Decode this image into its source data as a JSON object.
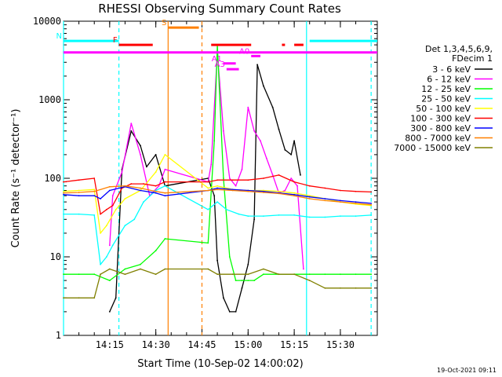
{
  "chart_data": {
    "type": "line",
    "title": "RHESSI Observing Summary Count Rates",
    "xlabel": "Start Time (10-Sep-02 14:00:02)",
    "ylabel": "Count Rate (s⁻¹ detector⁻¹)",
    "y_scale": "log",
    "ylim": [
      1,
      10000
    ],
    "xlim": [
      "14:00",
      "15:42"
    ],
    "x_ticks": [
      "14:15",
      "14:30",
      "14:45",
      "15:00",
      "15:15",
      "15:30"
    ],
    "y_ticks": [
      "1",
      "10",
      "100",
      "1000",
      "10000"
    ],
    "timestamp": "19-Oct-2021 09:11",
    "legend_header": [
      "Det 1,3,4,5,6,9,",
      "FDecim 1"
    ],
    "legend_placement": "right",
    "series": [
      {
        "name": "3 - 6 keV",
        "color": "#000000",
        "points": [
          [
            "14:15",
            2
          ],
          [
            "14:17",
            3
          ],
          [
            "14:19",
            130
          ],
          [
            "14:22",
            400
          ],
          [
            "14:25",
            260
          ],
          [
            "14:27",
            140
          ],
          [
            "14:30",
            200
          ],
          [
            "14:33",
            80
          ],
          [
            "14:47",
            100
          ],
          [
            "14:49",
            60
          ],
          [
            "14:50",
            9
          ],
          [
            "14:52",
            3
          ],
          [
            "14:54",
            2
          ],
          [
            "14:56",
            2
          ],
          [
            "14:58",
            4
          ],
          [
            "15:00",
            8
          ],
          [
            "15:02",
            30
          ],
          [
            "15:03",
            2800
          ],
          [
            "15:05",
            1500
          ],
          [
            "15:08",
            800
          ],
          [
            "15:10",
            420
          ],
          [
            "15:12",
            230
          ],
          [
            "15:14",
            200
          ],
          [
            "15:15",
            300
          ],
          [
            "15:17",
            110
          ]
        ]
      },
      {
        "name": "6 - 12 keV",
        "color": "#ff00ff",
        "points": [
          [
            "14:15",
            14
          ],
          [
            "14:16",
            60
          ],
          [
            "14:19",
            120
          ],
          [
            "14:22",
            500
          ],
          [
            "14:25",
            200
          ],
          [
            "14:28",
            60
          ],
          [
            "14:31",
            80
          ],
          [
            "14:33",
            130
          ],
          [
            "14:47",
            90
          ],
          [
            "14:48",
            150
          ],
          [
            "14:50",
            4000
          ],
          [
            "14:52",
            400
          ],
          [
            "14:54",
            100
          ],
          [
            "14:56",
            80
          ],
          [
            "14:58",
            130
          ],
          [
            "15:00",
            800
          ],
          [
            "15:02",
            400
          ],
          [
            "15:04",
            300
          ],
          [
            "15:06",
            180
          ],
          [
            "15:08",
            110
          ],
          [
            "15:10",
            65
          ],
          [
            "15:12",
            70
          ],
          [
            "15:14",
            100
          ],
          [
            "15:16",
            80
          ],
          [
            "15:18",
            7
          ]
        ]
      },
      {
        "name": "12 - 25 keV",
        "color": "#00ff00",
        "points": [
          [
            "14:00",
            6
          ],
          [
            "14:05",
            6
          ],
          [
            "14:10",
            6
          ],
          [
            "14:15",
            5
          ],
          [
            "14:20",
            7
          ],
          [
            "14:25",
            8
          ],
          [
            "14:30",
            12
          ],
          [
            "14:33",
            17
          ],
          [
            "14:47",
            15
          ],
          [
            "14:49",
            300
          ],
          [
            "14:50",
            5000
          ],
          [
            "14:52",
            100
          ],
          [
            "14:54",
            10
          ],
          [
            "14:56",
            5
          ],
          [
            "14:58",
            5
          ],
          [
            "15:00",
            5
          ],
          [
            "15:02",
            5
          ],
          [
            "15:05",
            6
          ],
          [
            "15:10",
            6
          ],
          [
            "15:15",
            6
          ],
          [
            "15:20",
            6
          ],
          [
            "15:25",
            6
          ],
          [
            "15:30",
            6
          ],
          [
            "15:35",
            6
          ],
          [
            "15:40",
            6
          ]
        ]
      },
      {
        "name": "25 - 50 keV",
        "color": "#00ffff",
        "points": [
          [
            "14:00",
            35
          ],
          [
            "14:05",
            35
          ],
          [
            "14:10",
            34
          ],
          [
            "14:12",
            8
          ],
          [
            "14:14",
            10
          ],
          [
            "14:16",
            14
          ],
          [
            "14:20",
            25
          ],
          [
            "14:23",
            30
          ],
          [
            "14:26",
            50
          ],
          [
            "14:30",
            70
          ],
          [
            "14:33",
            80
          ],
          [
            "14:47",
            40
          ],
          [
            "14:50",
            50
          ],
          [
            "14:53",
            40
          ],
          [
            "14:57",
            35
          ],
          [
            "15:00",
            33
          ],
          [
            "15:05",
            33
          ],
          [
            "15:10",
            34
          ],
          [
            "15:15",
            34
          ],
          [
            "15:20",
            32
          ],
          [
            "15:25",
            32
          ],
          [
            "15:30",
            33
          ],
          [
            "15:35",
            33
          ],
          [
            "15:40",
            34
          ]
        ]
      },
      {
        "name": "50 - 100 keV",
        "color": "#ffff00",
        "points": [
          [
            "14:00",
            68
          ],
          [
            "14:05",
            70
          ],
          [
            "14:10",
            72
          ],
          [
            "14:12",
            20
          ],
          [
            "14:14",
            25
          ],
          [
            "14:17",
            40
          ],
          [
            "14:20",
            55
          ],
          [
            "14:25",
            70
          ],
          [
            "14:30",
            120
          ],
          [
            "14:33",
            200
          ],
          [
            "14:47",
            75
          ],
          [
            "14:50",
            80
          ],
          [
            "14:55",
            72
          ],
          [
            "15:00",
            70
          ],
          [
            "15:05",
            70
          ],
          [
            "15:10",
            68
          ],
          [
            "15:15",
            65
          ],
          [
            "15:20",
            60
          ],
          [
            "15:25",
            55
          ],
          [
            "15:30",
            50
          ],
          [
            "15:35",
            47
          ],
          [
            "15:40",
            45
          ]
        ]
      },
      {
        "name": "100 - 300 keV",
        "color": "#ff0000",
        "points": [
          [
            "14:00",
            90
          ],
          [
            "14:05",
            95
          ],
          [
            "14:10",
            100
          ],
          [
            "14:12",
            35
          ],
          [
            "14:14",
            40
          ],
          [
            "14:16",
            45
          ],
          [
            "14:19",
            75
          ],
          [
            "14:22",
            85
          ],
          [
            "14:26",
            85
          ],
          [
            "14:30",
            80
          ],
          [
            "14:33",
            90
          ],
          [
            "14:47",
            90
          ],
          [
            "14:50",
            95
          ],
          [
            "14:55",
            95
          ],
          [
            "15:00",
            95
          ],
          [
            "15:05",
            100
          ],
          [
            "15:10",
            110
          ],
          [
            "15:15",
            90
          ],
          [
            "15:20",
            80
          ],
          [
            "15:25",
            75
          ],
          [
            "15:30",
            70
          ],
          [
            "15:35",
            68
          ],
          [
            "15:40",
            67
          ]
        ]
      },
      {
        "name": "300 - 800 keV",
        "color": "#0000ff",
        "points": [
          [
            "14:00",
            62
          ],
          [
            "14:05",
            60
          ],
          [
            "14:10",
            60
          ],
          [
            "14:12",
            55
          ],
          [
            "14:15",
            70
          ],
          [
            "14:20",
            78
          ],
          [
            "14:25",
            70
          ],
          [
            "14:30",
            65
          ],
          [
            "14:33",
            60
          ],
          [
            "14:47",
            70
          ],
          [
            "14:50",
            75
          ],
          [
            "14:55",
            72
          ],
          [
            "15:00",
            70
          ],
          [
            "15:05",
            68
          ],
          [
            "15:10",
            65
          ],
          [
            "15:15",
            62
          ],
          [
            "15:20",
            58
          ],
          [
            "15:25",
            55
          ],
          [
            "15:30",
            52
          ],
          [
            "15:35",
            50
          ],
          [
            "15:40",
            48
          ]
        ]
      },
      {
        "name": "800 - 7000 keV",
        "color": "#ff8000",
        "points": [
          [
            "14:00",
            65
          ],
          [
            "14:05",
            66
          ],
          [
            "14:10",
            68
          ],
          [
            "14:15",
            78
          ],
          [
            "14:20",
            80
          ],
          [
            "14:25",
            75
          ],
          [
            "14:30",
            68
          ],
          [
            "14:33",
            65
          ],
          [
            "14:47",
            70
          ],
          [
            "14:50",
            72
          ],
          [
            "14:55",
            70
          ],
          [
            "15:00",
            68
          ],
          [
            "15:05",
            66
          ],
          [
            "15:10",
            64
          ],
          [
            "15:15",
            60
          ],
          [
            "15:20",
            55
          ],
          [
            "15:25",
            52
          ],
          [
            "15:30",
            50
          ],
          [
            "15:35",
            48
          ],
          [
            "15:40",
            46
          ]
        ]
      },
      {
        "name": "7000 - 15000 keV",
        "color": "#808000",
        "points": [
          [
            "14:00",
            3
          ],
          [
            "14:05",
            3
          ],
          [
            "14:10",
            3
          ],
          [
            "14:12",
            6
          ],
          [
            "14:15",
            7
          ],
          [
            "14:20",
            6
          ],
          [
            "14:25",
            7
          ],
          [
            "14:30",
            6
          ],
          [
            "14:33",
            7
          ],
          [
            "14:47",
            7
          ],
          [
            "14:50",
            6
          ],
          [
            "14:55",
            6
          ],
          [
            "15:00",
            6
          ],
          [
            "15:05",
            7
          ],
          [
            "15:10",
            6
          ],
          [
            "15:15",
            6
          ],
          [
            "15:20",
            5
          ],
          [
            "15:25",
            4
          ],
          [
            "15:30",
            4
          ],
          [
            "15:35",
            4
          ],
          [
            "15:40",
            4
          ]
        ]
      }
    ],
    "markers": [
      {
        "label": "N",
        "color": "#00ffff",
        "level": 5600,
        "segments": [
          [
            "14:00",
            "14:18"
          ],
          [
            "15:20",
            "15:42"
          ]
        ]
      },
      {
        "label": "F",
        "color": "#ff0000",
        "level": 5000,
        "segments": [
          [
            "14:18",
            "14:29"
          ],
          [
            "14:48",
            "15:01"
          ],
          [
            "15:11",
            "15:12"
          ],
          [
            "15:15",
            "15:18"
          ]
        ]
      },
      {
        "label": "S",
        "color": "#ff8000",
        "level": 8300,
        "segments": [
          [
            "14:34",
            "14:44"
          ]
        ]
      },
      {
        "label": "A0",
        "color": "#ff00ff",
        "level": 3600,
        "segments": [
          [
            "15:01",
            "15:04"
          ]
        ]
      },
      {
        "label": "A1",
        "color": "#ff00ff",
        "level": 2900,
        "segments": [
          [
            "14:52",
            "14:56"
          ]
        ]
      },
      {
        "label": "A3",
        "color": "#ff00ff",
        "level": 2450,
        "segments": [
          [
            "14:53",
            "14:57"
          ]
        ]
      }
    ],
    "saa_line": {
      "color": "#ff00ff",
      "level": 4000
    },
    "vertical_lines": [
      {
        "time": "14:00",
        "color": "#00ffff",
        "style": "solid"
      },
      {
        "time": "14:18",
        "color": "#00ffff",
        "style": "dashed"
      },
      {
        "time": "14:34",
        "color": "#ff8000",
        "style": "solid"
      },
      {
        "time": "14:45",
        "color": "#ff8000",
        "style": "dashed"
      },
      {
        "time": "15:19",
        "color": "#00ffff",
        "style": "solid"
      },
      {
        "time": "15:40",
        "color": "#00ffff",
        "style": "dashed"
      }
    ]
  }
}
